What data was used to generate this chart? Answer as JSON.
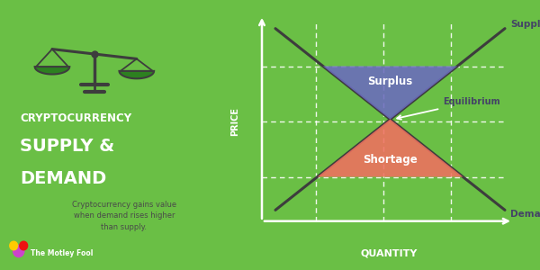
{
  "bg_color": "#6abf45",
  "title_line1": "CRYPTOCURRENCY",
  "title_line2": "SUPPLY &",
  "title_line3": "DEMAND",
  "subtitle": "Cryptocurrency gains value\nwhen demand rises higher\nthan supply.",
  "motley_fool_text": "The Motley Fool",
  "supply_label": "Supply",
  "demand_label": "Demand",
  "equilibrium_label": "Equilibrium",
  "surplus_label": "Surplus",
  "shortage_label": "Shortage",
  "price_label": "PRICE",
  "quantity_label": "QUANTITY",
  "surplus_color": "#6b6bbf",
  "shortage_color": "#f07060",
  "line_color": "#3d3d3d",
  "text_color_dark": "#444466",
  "text_color_white": "#ffffff",
  "dashed_color": "#ffffff",
  "axis_color": "#ffffff",
  "scale_color": "#2d8020",
  "scale_outline": "#3d3d3d"
}
